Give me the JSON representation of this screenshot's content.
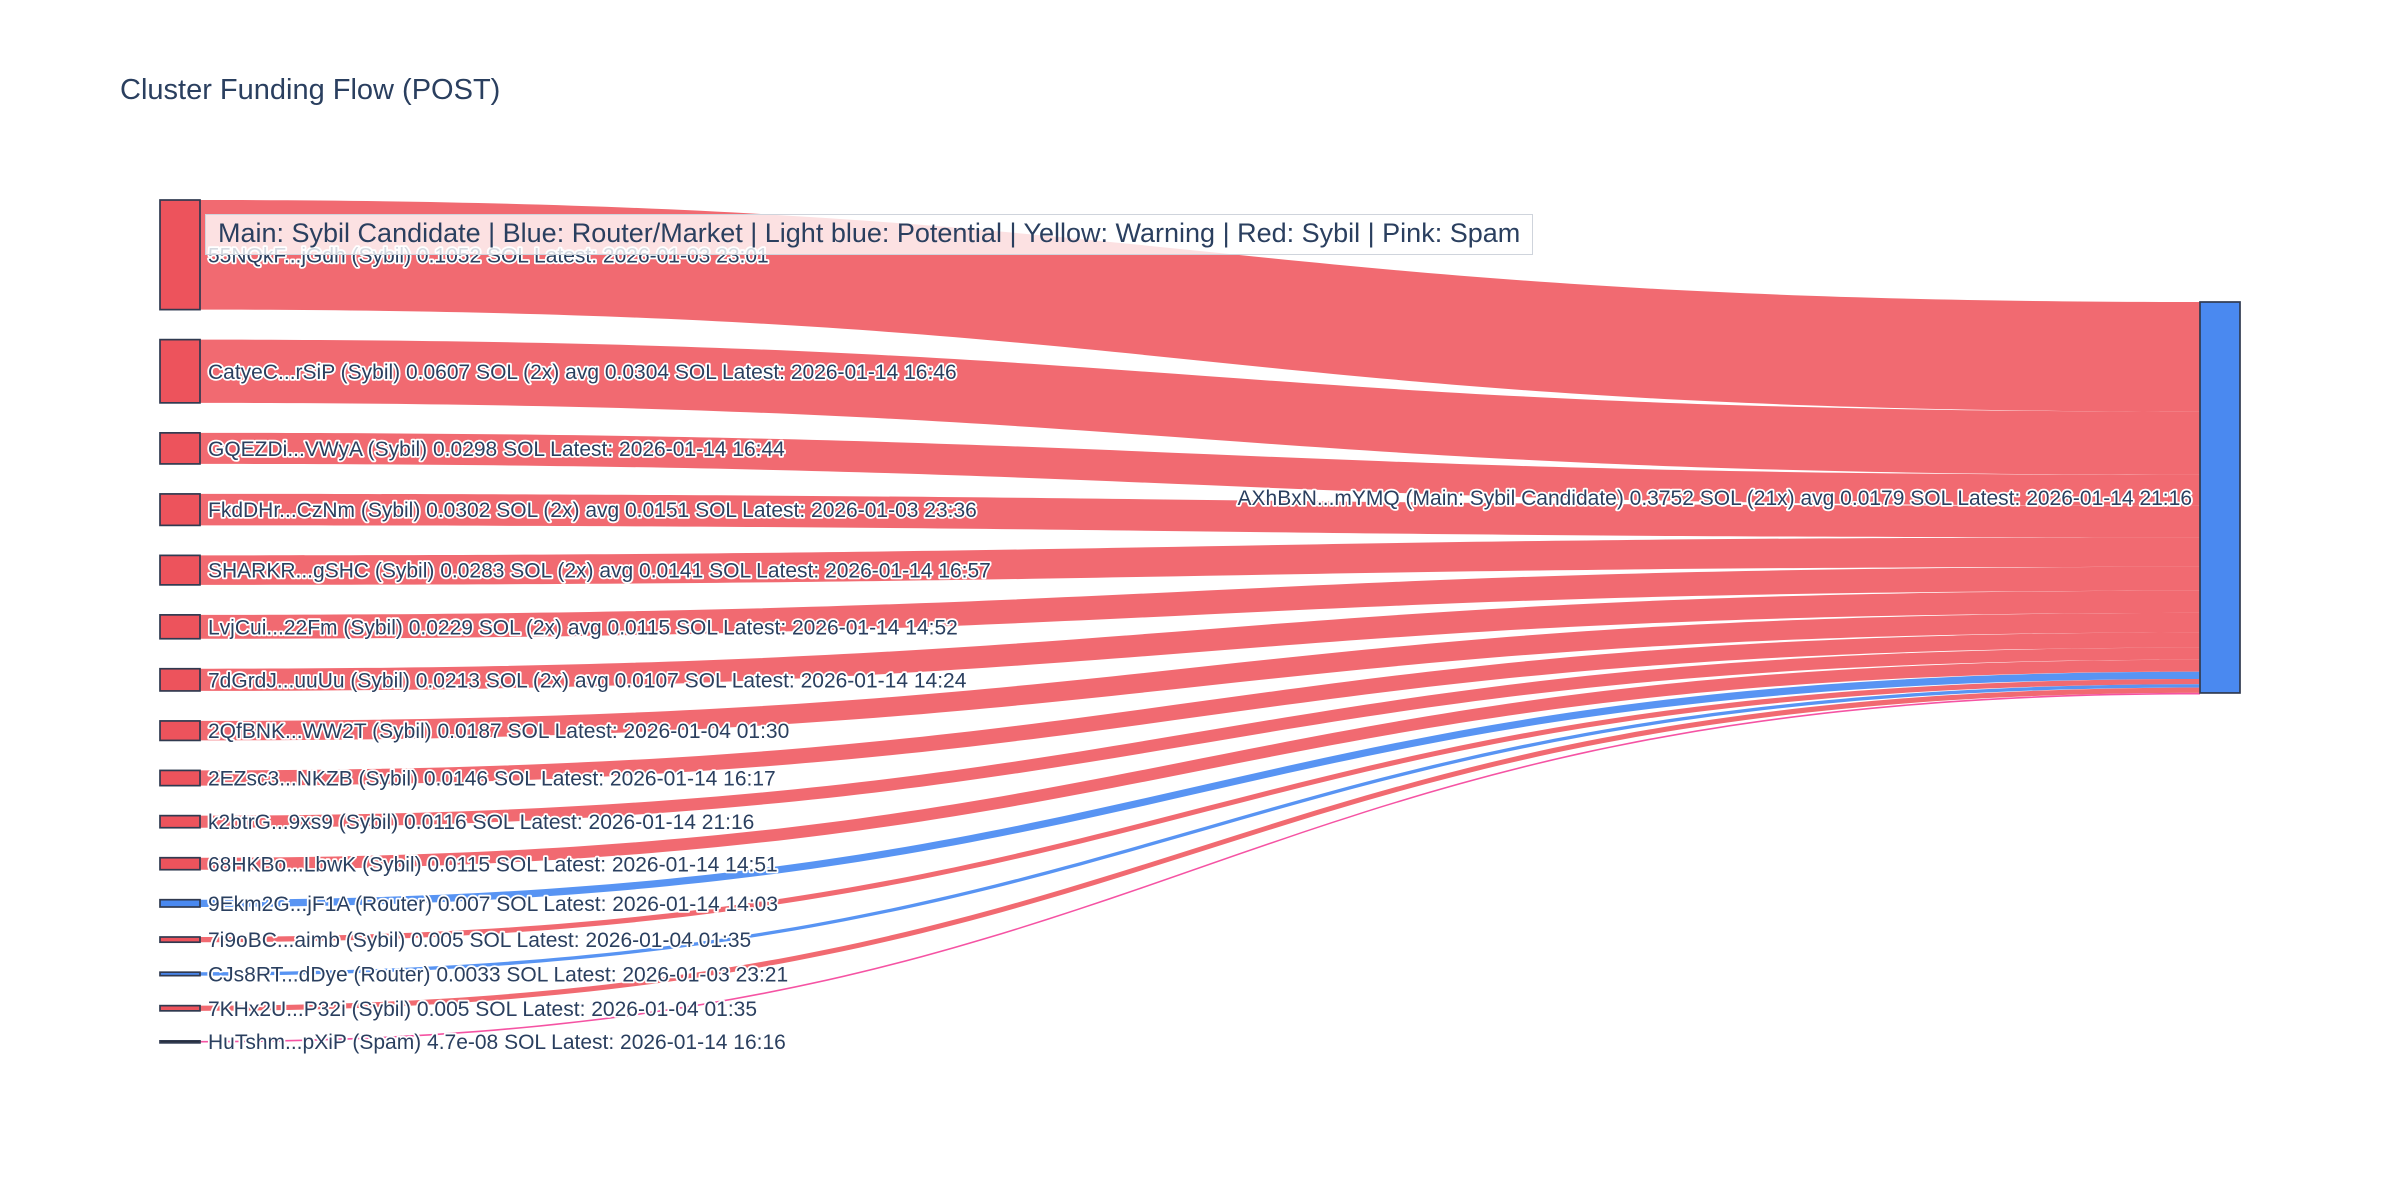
{
  "header": {
    "title": "Cluster Funding Flow (POST)"
  },
  "legend": {
    "note": "Main: Sybil Candidate  |  Blue: Router/Market | Light blue: Potential | Yellow: Warning | Red: Sybil | Pink: Spam"
  },
  "chart_data": {
    "type": "sankey",
    "title": "Cluster Funding Flow (POST)",
    "unit": "SOL",
    "orientation": "horizontal",
    "legend_note": "Main: Sybil Candidate | Blue: Router/Market | Light blue: Potential | Yellow: Warning | Red: Sybil | Pink: Spam",
    "target": {
      "id": "AXhBxN...mYMQ",
      "label": "AXhBxN...mYMQ (Main: Sybil Candidate) 0.3752 SOL (21x) avg 0.0179 SOL Latest: 2026-01-14 21:16",
      "value_sol": 0.3752,
      "tx_multiplier": "21x",
      "avg_sol": 0.0179,
      "latest": "2026-01-14 21:16",
      "category": "main"
    },
    "sources": [
      {
        "id": "55NQkF...jGdh",
        "label": "55NQkF...jGdh (Sybil) 0.1052 SOL Latest: 2026-01-03 23:01",
        "value_sol": 0.1052,
        "category": "sybil",
        "latest": "2026-01-03 23:01"
      },
      {
        "id": "CatyeC...rSiP",
        "label": "CatyeC...rSiP (Sybil) 0.0607 SOL (2x) avg 0.0304 SOL Latest: 2026-01-14 16:46",
        "value_sol": 0.0607,
        "category": "sybil",
        "tx_multiplier": "2x",
        "avg_sol": 0.0304,
        "latest": "2026-01-14 16:46"
      },
      {
        "id": "GQEZDi...VWyA",
        "label": "GQEZDi...VWyA (Sybil) 0.0298 SOL Latest: 2026-01-14 16:44",
        "value_sol": 0.0298,
        "category": "sybil",
        "latest": "2026-01-14 16:44"
      },
      {
        "id": "FkdDHr...CzNm",
        "label": "FkdDHr...CzNm (Sybil) 0.0302 SOL (2x) avg 0.0151 SOL Latest: 2026-01-03 23:36",
        "value_sol": 0.0302,
        "category": "sybil",
        "tx_multiplier": "2x",
        "avg_sol": 0.0151,
        "latest": "2026-01-03 23:36"
      },
      {
        "id": "SHARKR...gSHC",
        "label": "SHARKR...gSHC (Sybil) 0.0283 SOL (2x) avg 0.0141 SOL Latest: 2026-01-14 16:57",
        "value_sol": 0.0283,
        "category": "sybil",
        "tx_multiplier": "2x",
        "avg_sol": 0.0141,
        "latest": "2026-01-14 16:57"
      },
      {
        "id": "LvjCui...22Fm",
        "label": "LvjCui...22Fm (Sybil) 0.0229 SOL (2x) avg 0.0115 SOL Latest: 2026-01-14 14:52",
        "value_sol": 0.0229,
        "category": "sybil",
        "tx_multiplier": "2x",
        "avg_sol": 0.0115,
        "latest": "2026-01-14 14:52"
      },
      {
        "id": "7dGrdJ...uuUu",
        "label": "7dGrdJ...uuUu (Sybil) 0.0213 SOL (2x) avg 0.0107 SOL Latest: 2026-01-14 14:24",
        "value_sol": 0.0213,
        "category": "sybil",
        "tx_multiplier": "2x",
        "avg_sol": 0.0107,
        "latest": "2026-01-14 14:24"
      },
      {
        "id": "2QfBNK...WW2T",
        "label": "2QfBNK...WW2T (Sybil) 0.0187 SOL Latest: 2026-01-04 01:30",
        "value_sol": 0.0187,
        "category": "sybil",
        "latest": "2026-01-04 01:30"
      },
      {
        "id": "2EZsc3...NKZB",
        "label": "2EZsc3...NKZB (Sybil) 0.0146 SOL Latest: 2026-01-14 16:17",
        "value_sol": 0.0146,
        "category": "sybil",
        "latest": "2026-01-14 16:17"
      },
      {
        "id": "k2btrG...9xs9",
        "label": "k2btrG...9xs9 (Sybil) 0.0116 SOL Latest: 2026-01-14 21:16",
        "value_sol": 0.0116,
        "category": "sybil",
        "latest": "2026-01-14 21:16"
      },
      {
        "id": "68HKBo...LbwK",
        "label": "68HKBo...LbwK (Sybil) 0.0115 SOL Latest: 2026-01-14 14:51",
        "value_sol": 0.0115,
        "category": "sybil",
        "latest": "2026-01-14 14:51"
      },
      {
        "id": "9Ekm2G...jF1A",
        "label": "9Ekm2G...jF1A (Router) 0.007 SOL Latest: 2026-01-14 14:03",
        "value_sol": 0.007,
        "category": "router",
        "latest": "2026-01-14 14:03"
      },
      {
        "id": "7i9oBC...aimb",
        "label": "7i9oBC...aimb (Sybil) 0.005 SOL Latest: 2026-01-04 01:35",
        "value_sol": 0.005,
        "category": "sybil",
        "latest": "2026-01-04 01:35"
      },
      {
        "id": "CJs8RT...dDye",
        "label": "CJs8RT...dDye (Router) 0.0033 SOL Latest: 2026-01-03 23:21",
        "value_sol": 0.0033,
        "category": "router",
        "latest": "2026-01-03 23:21"
      },
      {
        "id": "7KHx2U...P32i",
        "label": "7KHx2U...P32i (Sybil) 0.005 SOL Latest: 2026-01-04 01:35",
        "value_sol": 0.005,
        "category": "sybil",
        "latest": "2026-01-04 01:35"
      },
      {
        "id": "HuTshm...pXiP",
        "label": "HuTshm...pXiP (Spam) 4.7e-08 SOL Latest: 2026-01-14 16:16",
        "value_sol": 4.7e-08,
        "category": "spam",
        "latest": "2026-01-14 16:16"
      }
    ],
    "category_colors": {
      "sybil_node": "#ed535c",
      "sybil_flow": "rgba(239,85,93,0.88)",
      "router_node": "#4a89f0",
      "router_flow": "rgba(74,139,242,0.92)",
      "spam_node": "#1a1a1a",
      "spam_flow": "rgba(244,74,158,0.95)",
      "main_node": "#4a89f0",
      "main_flow": "rgba(74,139,242,0.92)",
      "node_border": "#303a50",
      "label_text": "#2a3f5f"
    }
  }
}
